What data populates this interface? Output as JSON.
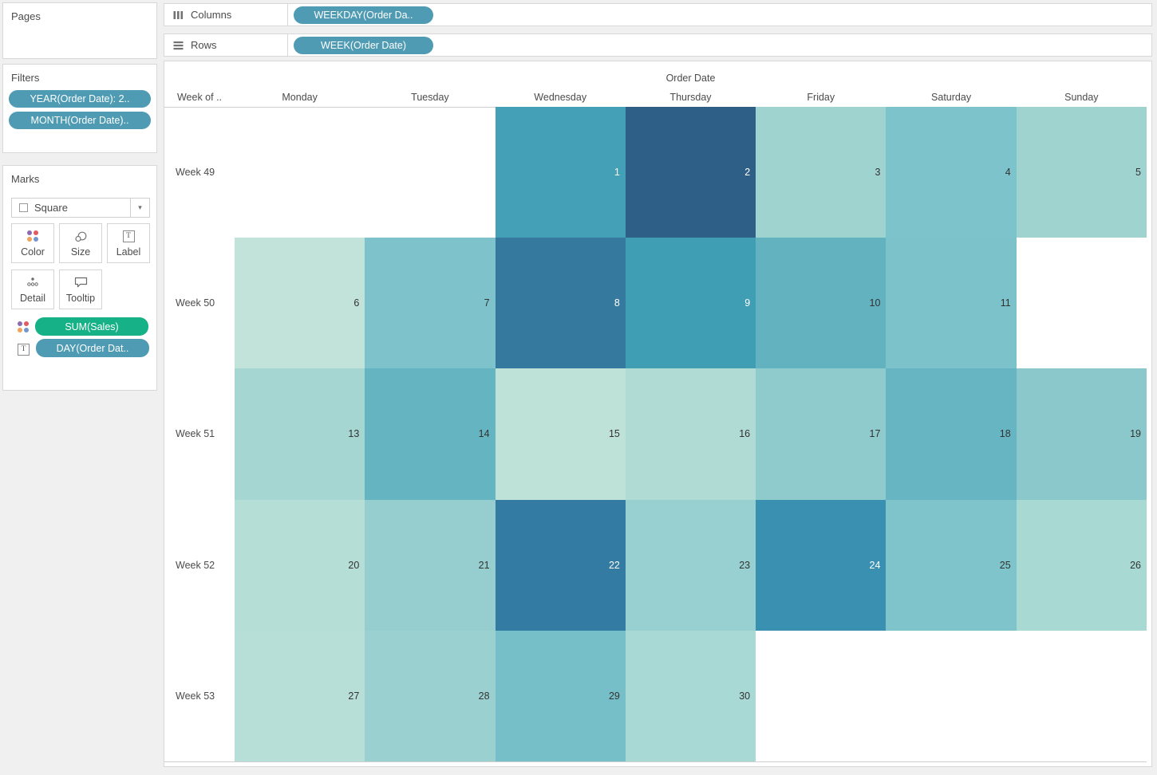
{
  "colors": {
    "pill_blue": "#4E9BB3",
    "pill_green": "#16B186",
    "app_background": "#f0f0f0",
    "label_dark": "#333333",
    "label_white": "#ffffff"
  },
  "left_panel": {
    "pages": {
      "title": "Pages"
    },
    "filters": {
      "title": "Filters",
      "pills": [
        {
          "label": "YEAR(Order Date): 2..",
          "color": "#4E9BB3"
        },
        {
          "label": "MONTH(Order Date)..",
          "color": "#4E9BB3"
        }
      ]
    },
    "marks": {
      "title": "Marks",
      "mark_type": {
        "icon": "square-mark-icon",
        "label": "Square"
      },
      "buttons": [
        {
          "icon": "color-dots-icon",
          "label": "Color"
        },
        {
          "icon": "size-icon",
          "label": "Size"
        },
        {
          "icon": "label-icon",
          "label": "Label"
        },
        {
          "icon": "detail-icon",
          "label": "Detail"
        },
        {
          "icon": "tooltip-icon",
          "label": "Tooltip"
        }
      ],
      "pills": [
        {
          "icon": "color-dots-icon",
          "label": "SUM(Sales)",
          "color": "#16B186"
        },
        {
          "icon": "text-label-icon",
          "label": "DAY(Order Dat..",
          "color": "#4E9BB3"
        }
      ]
    }
  },
  "shelves": {
    "columns": {
      "label": "Columns",
      "pills": [
        {
          "label": "WEEKDAY(Order Da..",
          "color": "#4E9BB3"
        }
      ]
    },
    "rows": {
      "label": "Rows",
      "pills": [
        {
          "label": "WEEK(Order Date)",
          "color": "#4E9BB3"
        }
      ]
    }
  },
  "chart_data": {
    "type": "heatmap",
    "title": "Order Date",
    "row_header_label": "Week of ..",
    "columns": [
      "Monday",
      "Tuesday",
      "Wednesday",
      "Thursday",
      "Friday",
      "Saturday",
      "Sunday"
    ],
    "rows": [
      "Week 49",
      "Week 50",
      "Week 51",
      "Week 52",
      "Week 53"
    ],
    "color_encoding": "SUM(Sales)",
    "label_encoding": "DAY(Order Date)",
    "cells": [
      [
        null,
        null,
        {
          "day": 1,
          "color": "#43A0B6",
          "label_color": "#ffffff"
        },
        {
          "day": 2,
          "color": "#2E5F87",
          "label_color": "#ffffff"
        },
        {
          "day": 3,
          "color": "#9ED3D0",
          "label_color": "#333333"
        },
        {
          "day": 4,
          "color": "#7DC3CB",
          "label_color": "#333333"
        },
        {
          "day": 5,
          "color": "#9ED3D0",
          "label_color": "#333333"
        }
      ],
      [
        {
          "day": 6,
          "color": "#C1E3D9",
          "label_color": "#333333"
        },
        {
          "day": 7,
          "color": "#7EC3CB",
          "label_color": "#333333"
        },
        {
          "day": 8,
          "color": "#35799F",
          "label_color": "#ffffff"
        },
        {
          "day": 9,
          "color": "#3F9DB4",
          "label_color": "#ffffff"
        },
        {
          "day": 10,
          "color": "#63B2C0",
          "label_color": "#333333"
        },
        {
          "day": 11,
          "color": "#7CC2CA",
          "label_color": "#333333"
        },
        null
      ],
      [
        {
          "day": 13,
          "color": "#A5D6D2",
          "label_color": "#333333"
        },
        {
          "day": 14,
          "color": "#64B4C1",
          "label_color": "#333333"
        },
        {
          "day": 15,
          "color": "#BEE1D8",
          "label_color": "#333333"
        },
        {
          "day": 16,
          "color": "#B0DBD5",
          "label_color": "#333333"
        },
        {
          "day": 17,
          "color": "#8FCACD",
          "label_color": "#333333"
        },
        {
          "day": 18,
          "color": "#67B5C2",
          "label_color": "#333333"
        },
        {
          "day": 19,
          "color": "#8BC8CC",
          "label_color": "#333333"
        }
      ],
      [
        {
          "day": 20,
          "color": "#B5DED6",
          "label_color": "#333333"
        },
        {
          "day": 21,
          "color": "#96CED0",
          "label_color": "#333333"
        },
        {
          "day": 22,
          "color": "#337BA3",
          "label_color": "#ffffff"
        },
        {
          "day": 23,
          "color": "#98CFD1",
          "label_color": "#333333"
        },
        {
          "day": 24,
          "color": "#3A90B1",
          "label_color": "#ffffff"
        },
        {
          "day": 25,
          "color": "#7FC4CB",
          "label_color": "#333333"
        },
        {
          "day": 26,
          "color": "#A8DAD3",
          "label_color": "#333333"
        }
      ],
      [
        {
          "day": 27,
          "color": "#B7DED7",
          "label_color": "#333333"
        },
        {
          "day": 28,
          "color": "#9BD0D1",
          "label_color": "#333333"
        },
        {
          "day": 29,
          "color": "#76BFC8",
          "label_color": "#333333"
        },
        {
          "day": 30,
          "color": "#A9D9D4",
          "label_color": "#333333"
        },
        null,
        null,
        null
      ]
    ]
  }
}
